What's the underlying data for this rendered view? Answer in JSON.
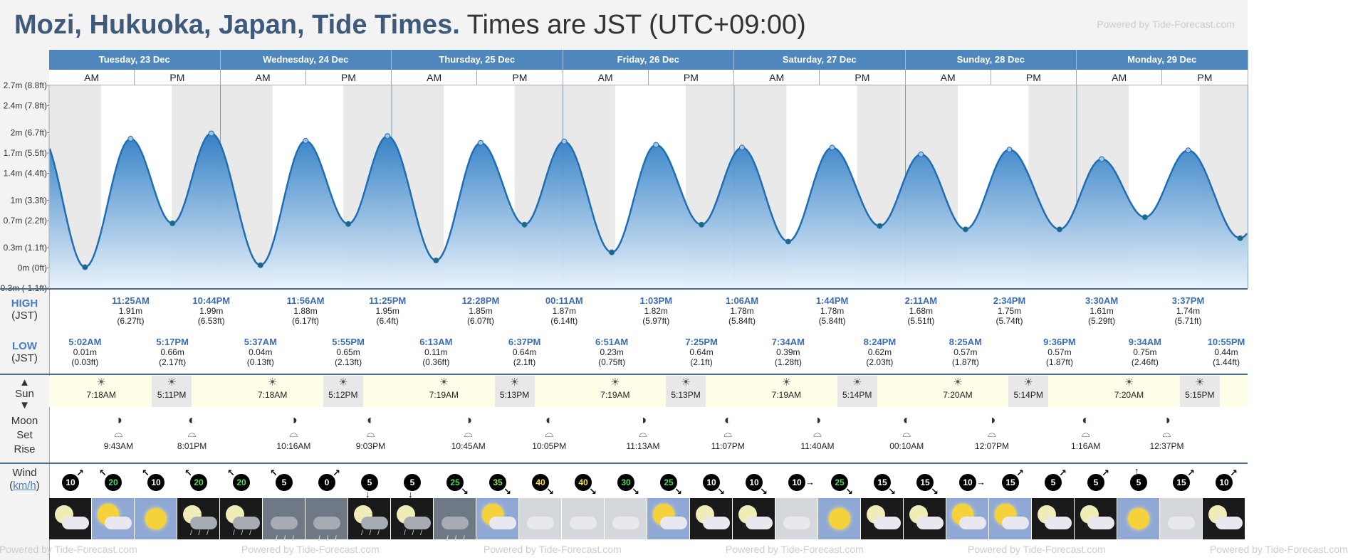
{
  "header": {
    "location": "Mozi, Hukuoka, Japan, Tide Times.",
    "timezone": "Times are JST (UTC+09:00)",
    "powered": "Powered by Tide-Forecast.com"
  },
  "days": [
    "Tuesday, 23 Dec",
    "Wednesday, 24 Dec",
    "Thursday, 25 Dec",
    "Friday, 26 Dec",
    "Saturday, 27 Dec",
    "Sunday, 28 Dec",
    "Monday, 29 Dec"
  ],
  "am_label": "AM",
  "pm_label": "PM",
  "labels": {
    "high": "HIGH",
    "low": "LOW",
    "jst": "(JST)",
    "sun": "Sun",
    "moon": "Moon",
    "set": "Set",
    "rise": "Rise",
    "wind": "Wind",
    "wind_unit": "km/h"
  },
  "chart_data": {
    "type": "area",
    "x_unit": "hours from 23 Dec 00:00 JST",
    "ylim": [
      -0.3,
      2.7
    ],
    "y_ticks": [
      "-0.3m (-1.1ft)",
      "0m (0ft)",
      "0.3m (1.1ft)",
      "0.7m (2.2ft)",
      "1m (3.3ft)",
      "1.4m (4.4ft)",
      "1.7m (5.5ft)",
      "2m (6.7ft)",
      "2.4m (7.8ft)",
      "2.7m (8.8ft)"
    ],
    "y_tick_values": [
      -0.3,
      0,
      0.3,
      0.7,
      1.0,
      1.4,
      1.7,
      2.0,
      2.4,
      2.7
    ],
    "extremes": [
      {
        "time": "5:02AM",
        "h": 5.03,
        "m": "0.01m",
        "ft": "(0.03ft)",
        "type": "low",
        "day": 0
      },
      {
        "time": "11:25AM",
        "h": 11.42,
        "m": "1.91m",
        "ft": "(6.27ft)",
        "type": "high",
        "day": 0
      },
      {
        "time": "5:17PM",
        "h": 17.28,
        "m": "0.66m",
        "ft": "(2.17ft)",
        "type": "low",
        "day": 0
      },
      {
        "time": "10:44PM",
        "h": 22.73,
        "m": "1.99m",
        "ft": "(6.53ft)",
        "type": "high",
        "day": 0
      },
      {
        "time": "5:37AM",
        "h": 29.62,
        "m": "0.04m",
        "ft": "(0.13ft)",
        "type": "low",
        "day": 1
      },
      {
        "time": "11:56AM",
        "h": 35.93,
        "m": "1.88m",
        "ft": "(6.17ft)",
        "type": "high",
        "day": 1
      },
      {
        "time": "5:55PM",
        "h": 41.92,
        "m": "0.65m",
        "ft": "(2.13ft)",
        "type": "low",
        "day": 1
      },
      {
        "time": "11:25PM",
        "h": 47.42,
        "m": "1.95m",
        "ft": "(6.4ft)",
        "type": "high",
        "day": 1
      },
      {
        "time": "6:13AM",
        "h": 54.22,
        "m": "0.11m",
        "ft": "(0.36ft)",
        "type": "low",
        "day": 2
      },
      {
        "time": "12:28PM",
        "h": 60.47,
        "m": "1.85m",
        "ft": "(6.07ft)",
        "type": "high",
        "day": 2
      },
      {
        "time": "6:37PM",
        "h": 66.62,
        "m": "0.64m",
        "ft": "(2.1ft)",
        "type": "low",
        "day": 2
      },
      {
        "time": "00:11AM",
        "h": 72.18,
        "m": "1.87m",
        "ft": "(6.14ft)",
        "type": "high",
        "day": 3
      },
      {
        "time": "6:51AM",
        "h": 78.85,
        "m": "0.23m",
        "ft": "(0.75ft)",
        "type": "low",
        "day": 3
      },
      {
        "time": "1:03PM",
        "h": 85.05,
        "m": "1.82m",
        "ft": "(5.97ft)",
        "type": "high",
        "day": 3
      },
      {
        "time": "7:25PM",
        "h": 91.42,
        "m": "0.64m",
        "ft": "(2.1ft)",
        "type": "low",
        "day": 3
      },
      {
        "time": "1:06AM",
        "h": 97.1,
        "m": "1.78m",
        "ft": "(5.84ft)",
        "type": "high",
        "day": 4
      },
      {
        "time": "7:34AM",
        "h": 103.57,
        "m": "0.39m",
        "ft": "(1.28ft)",
        "type": "low",
        "day": 4
      },
      {
        "time": "1:44PM",
        "h": 109.73,
        "m": "1.78m",
        "ft": "(5.84ft)",
        "type": "high",
        "day": 4
      },
      {
        "time": "8:24PM",
        "h": 116.4,
        "m": "0.62m",
        "ft": "(2.03ft)",
        "type": "low",
        "day": 4
      },
      {
        "time": "2:11AM",
        "h": 122.18,
        "m": "1.68m",
        "ft": "(5.51ft)",
        "type": "high",
        "day": 5
      },
      {
        "time": "8:25AM",
        "h": 128.42,
        "m": "0.57m",
        "ft": "(1.87ft)",
        "type": "low",
        "day": 5
      },
      {
        "time": "2:34PM",
        "h": 134.57,
        "m": "1.75m",
        "ft": "(5.74ft)",
        "type": "high",
        "day": 5
      },
      {
        "time": "9:36PM",
        "h": 141.6,
        "m": "0.57m",
        "ft": "(1.87ft)",
        "type": "low",
        "day": 5
      },
      {
        "time": "3:30AM",
        "h": 147.5,
        "m": "1.61m",
        "ft": "(5.29ft)",
        "type": "high",
        "day": 6
      },
      {
        "time": "9:34AM",
        "h": 153.57,
        "m": "0.75m",
        "ft": "(2.46ft)",
        "type": "low",
        "day": 6
      },
      {
        "time": "3:37PM",
        "h": 159.62,
        "m": "1.74m",
        "ft": "(5.71ft)",
        "type": "high",
        "day": 6
      },
      {
        "time": "10:55PM",
        "h": 166.92,
        "m": "0.44m",
        "ft": "(1.44ft)",
        "type": "low",
        "day": 6
      }
    ]
  },
  "sun": [
    {
      "rise": "7:18AM",
      "set": "5:11PM",
      "rise_h": 7.3,
      "set_h": 17.18
    },
    {
      "rise": "7:18AM",
      "set": "5:12PM",
      "rise_h": 31.3,
      "set_h": 41.2
    },
    {
      "rise": "7:19AM",
      "set": "5:13PM",
      "rise_h": 55.32,
      "set_h": 65.22
    },
    {
      "rise": "7:19AM",
      "set": "5:13PM",
      "rise_h": 79.32,
      "set_h": 89.22
    },
    {
      "rise": "7:19AM",
      "set": "5:14PM",
      "rise_h": 103.32,
      "set_h": 113.23
    },
    {
      "rise": "7:20AM",
      "set": "5:14PM",
      "rise_h": 127.33,
      "set_h": 137.23
    },
    {
      "rise": "7:20AM",
      "set": "5:15PM",
      "rise_h": 151.33,
      "set_h": 161.25
    }
  ],
  "moon": [
    {
      "time": "9:43AM",
      "h": 9.72,
      "kind": "rise"
    },
    {
      "time": "8:01PM",
      "h": 20.02,
      "kind": "set"
    },
    {
      "time": "10:16AM",
      "h": 34.27,
      "kind": "rise"
    },
    {
      "time": "9:03PM",
      "h": 45.05,
      "kind": "set"
    },
    {
      "time": "10:45AM",
      "h": 58.75,
      "kind": "rise"
    },
    {
      "time": "10:05PM",
      "h": 70.08,
      "kind": "set"
    },
    {
      "time": "11:13AM",
      "h": 83.22,
      "kind": "rise"
    },
    {
      "time": "11:07PM",
      "h": 95.12,
      "kind": "set"
    },
    {
      "time": "11:40AM",
      "h": 107.67,
      "kind": "rise"
    },
    {
      "time": "00:10AM",
      "h": 120.17,
      "kind": "set"
    },
    {
      "time": "12:07PM",
      "h": 132.12,
      "kind": "rise"
    },
    {
      "time": "1:16AM",
      "h": 145.27,
      "kind": "set"
    },
    {
      "time": "12:37PM",
      "h": 156.62,
      "kind": "rise"
    }
  ],
  "wind": [
    {
      "v": "10",
      "dir": "ne"
    },
    {
      "v": "20",
      "dir": "nw"
    },
    {
      "v": "10",
      "dir": "nw"
    },
    {
      "v": "20",
      "dir": "nw"
    },
    {
      "v": "20",
      "dir": "nw"
    },
    {
      "v": "5",
      "dir": "nw"
    },
    {
      "v": "0",
      "dir": "ne"
    },
    {
      "v": "5",
      "dir": "s"
    },
    {
      "v": "5",
      "dir": "s"
    },
    {
      "v": "25",
      "dir": "se"
    },
    {
      "v": "35",
      "dir": "se"
    },
    {
      "v": "40",
      "dir": "se"
    },
    {
      "v": "40",
      "dir": "se"
    },
    {
      "v": "30",
      "dir": "se"
    },
    {
      "v": "25",
      "dir": "se"
    },
    {
      "v": "10",
      "dir": "se"
    },
    {
      "v": "10",
      "dir": "se"
    },
    {
      "v": "10",
      "dir": "e"
    },
    {
      "v": "25",
      "dir": "se"
    },
    {
      "v": "15",
      "dir": "se"
    },
    {
      "v": "15",
      "dir": "se"
    },
    {
      "v": "10",
      "dir": "e"
    },
    {
      "v": "15",
      "dir": "ne"
    },
    {
      "v": "5",
      "dir": "ne"
    },
    {
      "v": "5",
      "dir": "ne"
    },
    {
      "v": "5",
      "dir": "n"
    },
    {
      "v": "15",
      "dir": "ne"
    },
    {
      "v": "10",
      "dir": "ne"
    }
  ],
  "wind_colors": {
    "0": "#ffffff",
    "5": "#ffffff",
    "10": "#ffffff",
    "15": "#ffffff",
    "20": "#5fd35f",
    "25": "#5fd35f",
    "30": "#5fd35f",
    "35": "#8fe04a",
    "40": "#f2e23a"
  },
  "weather": [
    "moon-cloud",
    "sun-cloud",
    "sun",
    "moon-rain",
    "moon-rain",
    "cloud-rain",
    "cloud-rain",
    "moon-rain",
    "moon-rain",
    "cloud-rain",
    "sun-cloud",
    "cloud",
    "cloud",
    "cloud",
    "sun-cloud",
    "moon-cloud",
    "moon-cloud",
    "cloud",
    "sun",
    "moon-cloud",
    "moon-cloud",
    "sun-cloud",
    "sun-cloud",
    "moon-cloud",
    "moon-cloud",
    "sun",
    "cloud",
    "moon-cloud"
  ]
}
